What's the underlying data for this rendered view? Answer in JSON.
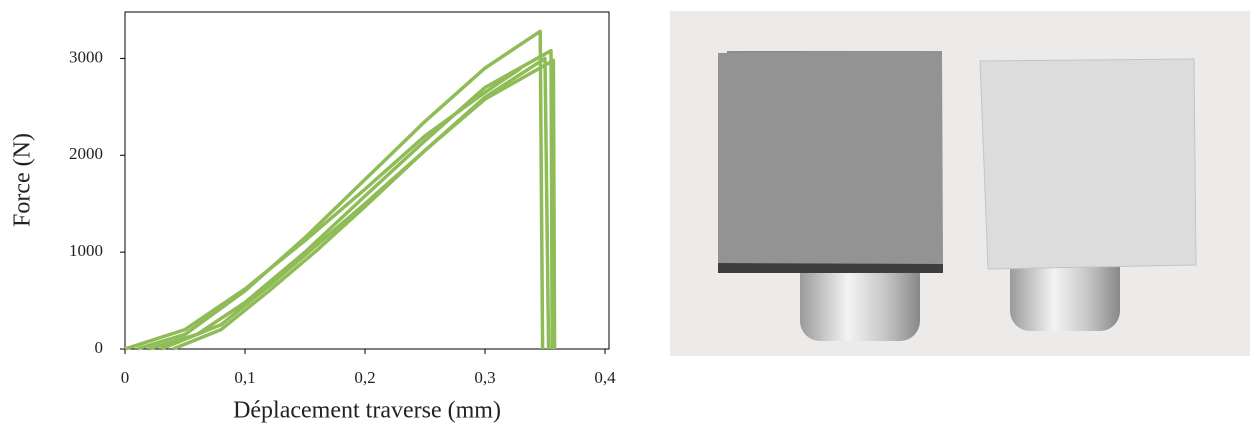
{
  "chart_data": {
    "type": "line",
    "xlabel": "Déplacement traverse (mm)",
    "ylabel": "Force (N)",
    "xlim": [
      0,
      0.4
    ],
    "ylim": [
      0,
      3500
    ],
    "xticks": [
      0,
      {
        "value": 0.1,
        "label": "0,1"
      },
      {
        "value": 0.2,
        "label": "0,2"
      },
      {
        "value": 0.3,
        "label": "0,3"
      },
      {
        "value": 0.4,
        "label": "0,4"
      }
    ],
    "yticks": [
      0,
      1000,
      2000,
      3000
    ],
    "grid": false,
    "series": [
      {
        "color": "#8fbc57",
        "x": [
          0.01,
          0.05,
          0.1,
          0.15,
          0.2,
          0.25,
          0.3,
          0.346,
          0.348
        ],
        "values": [
          0,
          150,
          600,
          1150,
          1750,
          2350,
          2900,
          3280,
          0
        ]
      },
      {
        "color": "#8fbc57",
        "x": [
          0.02,
          0.06,
          0.1,
          0.15,
          0.2,
          0.25,
          0.3,
          0.355,
          0.356
        ],
        "values": [
          0,
          150,
          480,
          1000,
          1580,
          2150,
          2700,
          3080,
          0
        ]
      },
      {
        "color": "#8fbc57",
        "x": [
          0.04,
          0.08,
          0.12,
          0.16,
          0.2,
          0.25,
          0.3,
          0.357,
          0.358
        ],
        "values": [
          0,
          200,
          600,
          1020,
          1470,
          2050,
          2580,
          2980,
          0
        ]
      },
      {
        "color": "#8fbc57",
        "x": [
          0.03,
          0.08,
          0.12,
          0.2,
          0.25,
          0.3,
          0.35,
          0.353
        ],
        "values": [
          0,
          250,
          650,
          1500,
          2050,
          2600,
          3000,
          0
        ]
      },
      {
        "color": "#8fbc57",
        "x": [
          0.0,
          0.05,
          0.1,
          0.15,
          0.2,
          0.25,
          0.3,
          0.33
        ],
        "values": [
          0,
          200,
          620,
          1120,
          1650,
          2200,
          2650,
          2900
        ]
      }
    ]
  }
}
